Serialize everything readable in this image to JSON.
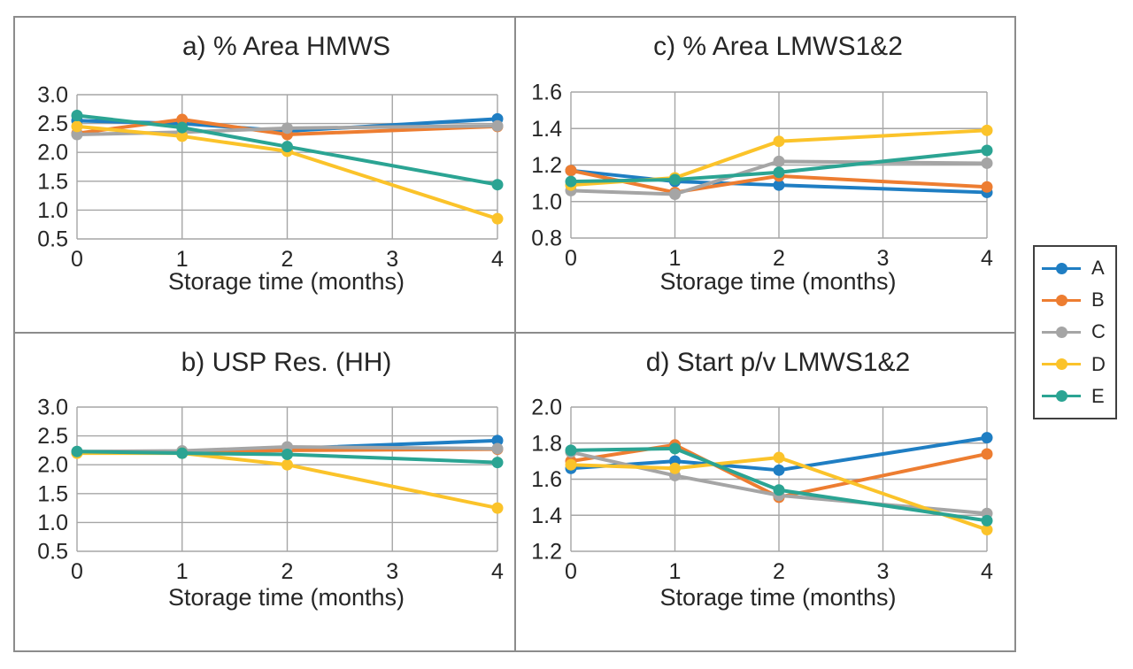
{
  "figure": {
    "legend": {
      "items": [
        {
          "label": "A",
          "color": "#1F7EC3"
        },
        {
          "label": "B",
          "color": "#ED7D31"
        },
        {
          "label": "C",
          "color": "#A5A5A5"
        },
        {
          "label": "D",
          "color": "#FBC32A"
        },
        {
          "label": "E",
          "color": "#2BA493"
        }
      ]
    },
    "colors": {
      "grid": "#A6A6A6",
      "panel_border": "#8C8C8C",
      "legend_border": "#404040",
      "text": "#262626"
    }
  },
  "chart_data": [
    {
      "id": "a",
      "type": "line",
      "title": "a) % Area HMWS",
      "xlabel": "Storage time (months)",
      "x": [
        0,
        1,
        2,
        4
      ],
      "xlim": [
        0,
        4
      ],
      "xticks": [
        "0",
        "1",
        "2",
        "3",
        "4"
      ],
      "ylim": [
        0.5,
        3.0
      ],
      "yticks": [
        "3.0",
        "2.5",
        "2.0",
        "1.5",
        "1.0",
        "0.5"
      ],
      "grid": true,
      "legend_position": "outside-right",
      "series": [
        {
          "name": "A",
          "values": [
            2.55,
            2.5,
            2.37,
            2.58
          ]
        },
        {
          "name": "B",
          "values": [
            2.33,
            2.57,
            2.31,
            2.45
          ]
        },
        {
          "name": "C",
          "values": [
            2.31,
            2.35,
            2.42,
            2.46
          ]
        },
        {
          "name": "D",
          "values": [
            2.45,
            2.28,
            2.02,
            0.85
          ]
        },
        {
          "name": "E",
          "values": [
            2.64,
            2.43,
            2.1,
            1.44
          ]
        }
      ]
    },
    {
      "id": "c",
      "type": "line",
      "title": "c) % Area LMWS1&2",
      "xlabel": "Storage time (months)",
      "x": [
        0,
        1,
        2,
        4
      ],
      "xlim": [
        0,
        4
      ],
      "xticks": [
        "0",
        "1",
        "2",
        "3",
        "4"
      ],
      "ylim": [
        0.8,
        1.6
      ],
      "yticks": [
        "1.6",
        "1.4",
        "1.2",
        "1.0",
        "0.8"
      ],
      "grid": true,
      "legend_position": "outside-right",
      "series": [
        {
          "name": "A",
          "values": [
            1.17,
            1.11,
            1.09,
            1.05
          ]
        },
        {
          "name": "B",
          "values": [
            1.17,
            1.05,
            1.14,
            1.08
          ]
        },
        {
          "name": "C",
          "values": [
            1.06,
            1.04,
            1.22,
            1.21
          ]
        },
        {
          "name": "D",
          "values": [
            1.09,
            1.13,
            1.33,
            1.39
          ]
        },
        {
          "name": "E",
          "values": [
            1.11,
            1.12,
            1.16,
            1.28
          ]
        }
      ]
    },
    {
      "id": "b",
      "type": "line",
      "title": "b) USP Res. (HH)",
      "xlabel": "Storage time (months)",
      "x": [
        0,
        1,
        2,
        4
      ],
      "xlim": [
        0,
        4
      ],
      "xticks": [
        "0",
        "1",
        "2",
        "3",
        "4"
      ],
      "ylim": [
        0.5,
        3.0
      ],
      "yticks": [
        "3.0",
        "2.5",
        "2.0",
        "1.5",
        "1.0",
        "0.5"
      ],
      "grid": true,
      "legend_position": "outside-right",
      "series": [
        {
          "name": "A",
          "values": [
            2.22,
            2.22,
            2.28,
            2.42
          ]
        },
        {
          "name": "B",
          "values": [
            2.21,
            2.21,
            2.25,
            2.27
          ]
        },
        {
          "name": "C",
          "values": [
            2.23,
            2.24,
            2.31,
            2.28
          ]
        },
        {
          "name": "D",
          "values": [
            2.2,
            2.2,
            2.0,
            1.25
          ]
        },
        {
          "name": "E",
          "values": [
            2.23,
            2.2,
            2.18,
            2.04
          ]
        }
      ]
    },
    {
      "id": "d",
      "type": "line",
      "title": "d) Start p/v LMWS1&2",
      "xlabel": "Storage time (months)",
      "x": [
        0,
        1,
        2,
        4
      ],
      "xlim": [
        0,
        4
      ],
      "xticks": [
        "0",
        "1",
        "2",
        "3",
        "4"
      ],
      "ylim": [
        1.2,
        2.0
      ],
      "yticks": [
        "2.0",
        "1.8",
        "1.6",
        "1.4",
        "1.2"
      ],
      "grid": true,
      "legend_position": "outside-right",
      "series": [
        {
          "name": "A",
          "values": [
            1.66,
            1.7,
            1.65,
            1.83
          ]
        },
        {
          "name": "B",
          "values": [
            1.7,
            1.79,
            1.5,
            1.74
          ]
        },
        {
          "name": "C",
          "values": [
            1.75,
            1.62,
            1.51,
            1.41
          ]
        },
        {
          "name": "D",
          "values": [
            1.68,
            1.66,
            1.72,
            1.32
          ]
        },
        {
          "name": "E",
          "values": [
            1.76,
            1.77,
            1.54,
            1.37
          ]
        }
      ]
    }
  ]
}
